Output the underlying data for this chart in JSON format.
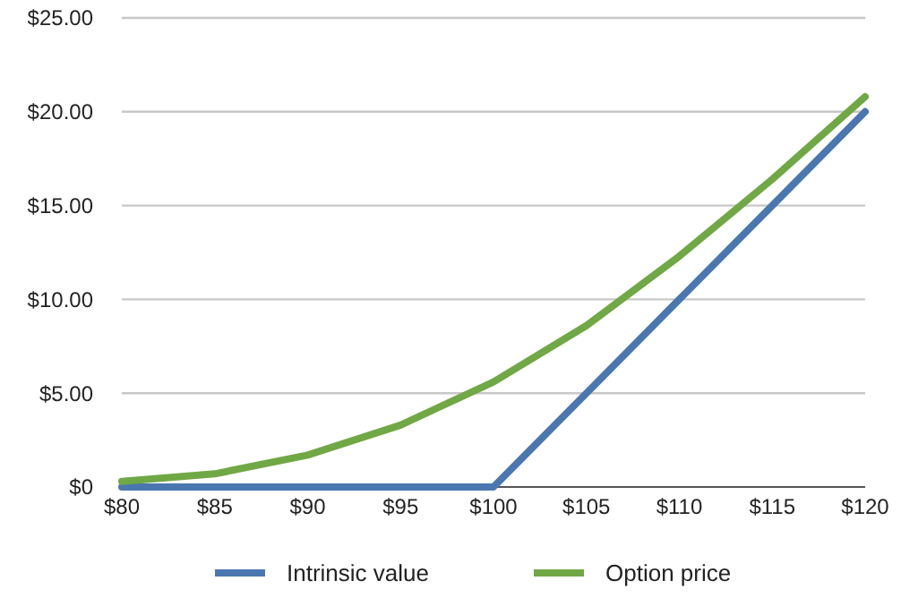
{
  "chart_data": {
    "type": "line",
    "categories": [
      "$80",
      "$85",
      "$90",
      "$95",
      "$100",
      "$105",
      "$110",
      "$115",
      "$120"
    ],
    "series": [
      {
        "name": "Intrinsic value",
        "color": "#4a77b0",
        "values": [
          0,
          0,
          0,
          0,
          0,
          5,
          10,
          15,
          20
        ]
      },
      {
        "name": "Option price",
        "color": "#70a845",
        "values": [
          0.3,
          0.7,
          1.7,
          3.3,
          5.6,
          8.6,
          12.3,
          16.4,
          20.8
        ]
      }
    ],
    "ylim": [
      0,
      25
    ],
    "yticks": [
      {
        "value": 0,
        "label": "$0"
      },
      {
        "value": 5,
        "label": "$5.00"
      },
      {
        "value": 10,
        "label": "$10.00"
      },
      {
        "value": 15,
        "label": "$15.00"
      },
      {
        "value": 20,
        "label": "$20.00"
      },
      {
        "value": 25,
        "label": "$25.00"
      }
    ],
    "grid": "y",
    "legend": "bottom",
    "marker": "none",
    "line_style": "solid"
  }
}
